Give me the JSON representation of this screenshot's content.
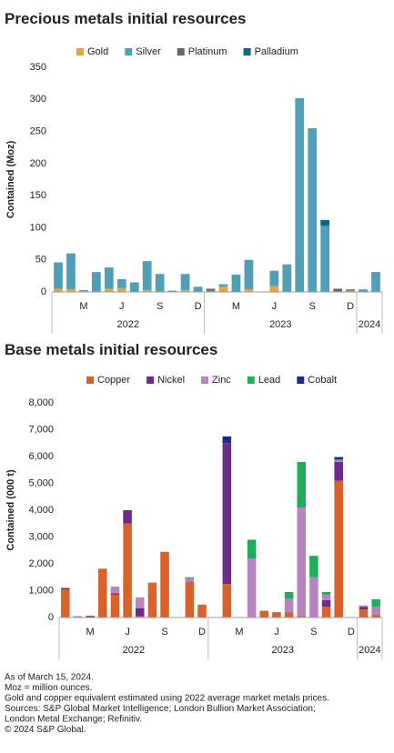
{
  "chart_data": [
    {
      "type": "bar",
      "stacked": true,
      "title": "Precious metals initial resources",
      "ylabel": "Contained (Moz)",
      "categories": [
        null,
        null,
        "M",
        null,
        null,
        "J",
        null,
        null,
        "S",
        null,
        null,
        "D",
        null,
        null,
        "M",
        null,
        null,
        "J",
        null,
        null,
        "S",
        null,
        null,
        "D",
        null,
        null
      ],
      "groups": [
        {
          "label": "2022",
          "count": 12
        },
        {
          "label": "2023",
          "count": 12
        },
        {
          "label": "2024",
          "count": 2
        }
      ],
      "ylim": [
        0,
        350
      ],
      "yticks": [
        0,
        50,
        100,
        150,
        200,
        250,
        300,
        350
      ],
      "series": [
        {
          "name": "Gold",
          "color": "#e8a33d",
          "values": [
            5,
            4,
            1,
            0,
            5,
            6,
            0,
            3,
            0,
            0,
            3,
            0,
            0,
            8,
            0,
            4,
            0,
            9,
            0,
            0,
            0,
            0,
            0,
            2,
            0,
            0
          ]
        },
        {
          "name": "Silver",
          "color": "#4f9fb6",
          "values": [
            41,
            56,
            2,
            31,
            33,
            14,
            15,
            45,
            28,
            2,
            25,
            8,
            2,
            4,
            27,
            46,
            0,
            24,
            43,
            302,
            255,
            103,
            1,
            0,
            4,
            31
          ]
        },
        {
          "name": "Platinum",
          "color": "#666666",
          "values": [
            0,
            0,
            0,
            0,
            0,
            0,
            0,
            0,
            0,
            0,
            0,
            0,
            3,
            0,
            0,
            0,
            0,
            0,
            0,
            0,
            0,
            0,
            4,
            2,
            0,
            0
          ]
        },
        {
          "name": "Palladium",
          "color": "#0b6688",
          "values": [
            0,
            0,
            0,
            0,
            0,
            0,
            0,
            0,
            0,
            0,
            0,
            0,
            0,
            0,
            0,
            0,
            0,
            0,
            0,
            0,
            0,
            9,
            0,
            0,
            0,
            0
          ]
        }
      ]
    },
    {
      "type": "bar",
      "stacked": true,
      "title": "Base metals initial resources",
      "ylabel": "Contained (000 t)",
      "categories": [
        null,
        null,
        "M",
        null,
        null,
        "J",
        null,
        null,
        "S",
        null,
        null,
        "D",
        null,
        null,
        "M",
        null,
        null,
        "J",
        null,
        null,
        "S",
        null,
        null,
        "D",
        null,
        null
      ],
      "groups": [
        {
          "label": "2022",
          "count": 12
        },
        {
          "label": "2023",
          "count": 12
        },
        {
          "label": "2024",
          "count": 2
        }
      ],
      "ylim": [
        0,
        8000
      ],
      "yticks": [
        0,
        {
          "value": 1000,
          "label": "1,000"
        },
        {
          "value": 2000,
          "label": "2,000"
        },
        {
          "value": 3000,
          "label": "3,000"
        },
        {
          "value": 4000,
          "label": "4,000"
        },
        {
          "value": 5000,
          "label": "5,000"
        },
        {
          "value": 6000,
          "label": "6,000"
        },
        {
          "value": 7000,
          "label": "7,000"
        },
        {
          "value": 8000,
          "label": "8,000"
        }
      ],
      "series": [
        {
          "name": "Copper",
          "color": "#d9622b",
          "values": [
            1050,
            0,
            0,
            1820,
            850,
            3500,
            50,
            1300,
            2450,
            0,
            1350,
            480,
            0,
            1250,
            0,
            0,
            250,
            200,
            200,
            50,
            0,
            400,
            5100,
            0,
            300,
            100
          ]
        },
        {
          "name": "Nickel",
          "color": "#6e2a8a",
          "values": [
            50,
            0,
            60,
            0,
            50,
            500,
            300,
            0,
            0,
            0,
            0,
            0,
            0,
            5250,
            0,
            0,
            0,
            0,
            0,
            0,
            0,
            250,
            700,
            0,
            100,
            0
          ]
        },
        {
          "name": "Zinc",
          "color": "#b784c2",
          "values": [
            0,
            50,
            0,
            0,
            250,
            0,
            400,
            0,
            0,
            0,
            100,
            0,
            0,
            0,
            0,
            2200,
            0,
            0,
            500,
            4050,
            1500,
            200,
            50,
            0,
            50,
            300
          ]
        },
        {
          "name": "Lead",
          "color": "#1fad5a",
          "values": [
            0,
            0,
            0,
            0,
            0,
            0,
            0,
            0,
            0,
            0,
            50,
            0,
            0,
            0,
            0,
            700,
            0,
            0,
            250,
            1700,
            800,
            100,
            50,
            0,
            0,
            280
          ]
        },
        {
          "name": "Cobalt",
          "color": "#1b2a80",
          "values": [
            0,
            0,
            0,
            0,
            0,
            0,
            0,
            0,
            0,
            0,
            0,
            0,
            0,
            250,
            0,
            0,
            0,
            0,
            0,
            0,
            0,
            0,
            80,
            0,
            0,
            0
          ]
        }
      ]
    }
  ],
  "notes": [
    "As of March 15, 2024.",
    "Moz = million ounces.",
    "Gold and copper equivalent estimated using 2022 average market metals prices.",
    "Sources: S&P Global Market Intelligence; London Bullion Market Association;",
    "London Metal Exchange; Refinitiv.",
    "© 2024 S&P Global."
  ]
}
